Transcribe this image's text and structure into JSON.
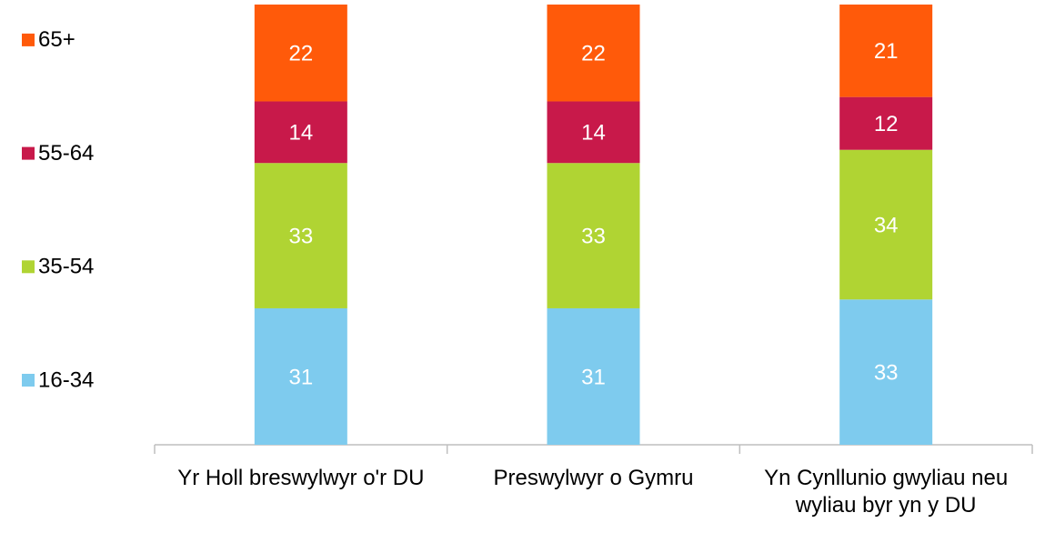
{
  "chart_data": {
    "type": "stacked_bar",
    "categories": [
      "Yr Holl breswylwyr o'r DU",
      "Preswylwyr o Gymru",
      "Yn Cynllunio gwyliau neu wyliau byr yn y DU"
    ],
    "series": [
      {
        "name": "16-34",
        "color": "#7ecbee",
        "values": [
          31,
          31,
          33
        ]
      },
      {
        "name": "35-54",
        "color": "#b0d433",
        "values": [
          33,
          33,
          34
        ]
      },
      {
        "name": "55-64",
        "color": "#c8194a",
        "values": [
          14,
          14,
          12
        ]
      },
      {
        "name": "65+",
        "color": "#ff5a0a",
        "values": [
          22,
          22,
          21
        ]
      }
    ],
    "ylim": [
      0,
      100
    ],
    "legend": "left"
  }
}
